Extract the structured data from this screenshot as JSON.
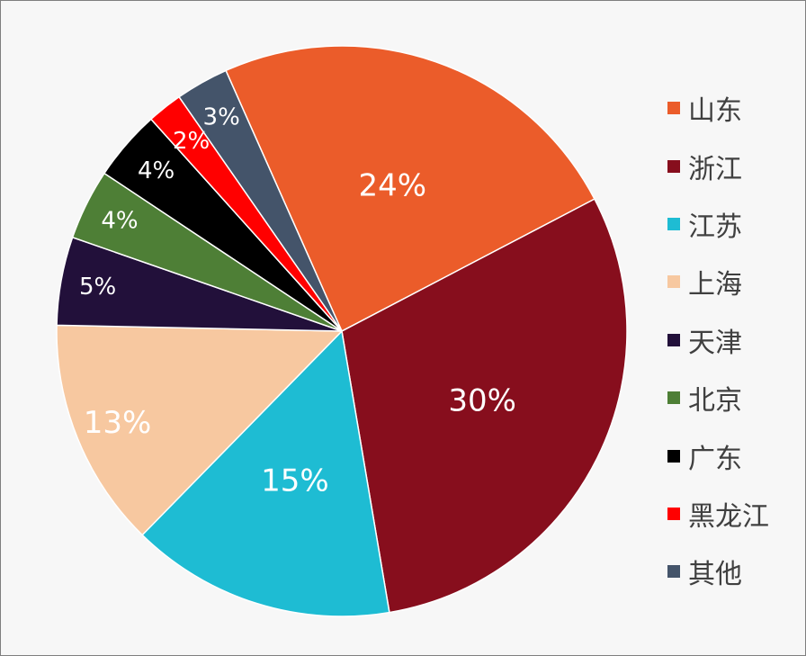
{
  "chart_data": {
    "type": "pie",
    "title": "",
    "legend_position": "right",
    "categories": [
      "山东",
      "浙江",
      "江苏",
      "上海",
      "天津",
      "北京",
      "广东",
      "黑龙江",
      "其他"
    ],
    "values": [
      24,
      30,
      15,
      13,
      5,
      4,
      4,
      2,
      3
    ],
    "labels": [
      "24%",
      "30%",
      "15%",
      "13%",
      "5%",
      "4%",
      "4%",
      "2%",
      "3%"
    ],
    "colors": [
      "#EB5C2A",
      "#870E1D",
      "#1EBCD3",
      "#F7C8A0",
      "#22103A",
      "#4E7F36",
      "#000000",
      "#FF0000",
      "#44546A"
    ],
    "legend_order": [
      0,
      1,
      2,
      3,
      4,
      5,
      6,
      7,
      8
    ]
  }
}
